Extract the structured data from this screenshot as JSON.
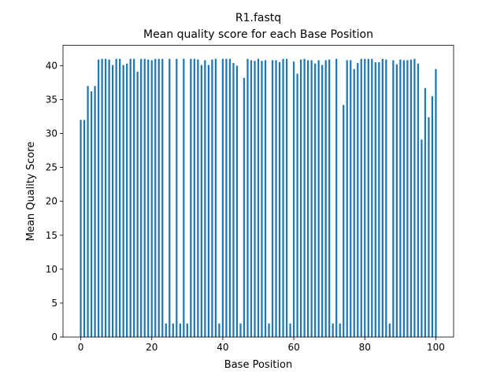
{
  "chart_data": {
    "type": "bar",
    "title": "R1.fastq",
    "subtitle": "Mean quality score for each Base Position",
    "xlabel": "Base Position",
    "ylabel": "Mean Quality Score",
    "xlim": [
      -5,
      105
    ],
    "ylim": [
      0,
      43
    ],
    "xticks": [
      0,
      20,
      40,
      60,
      80,
      100
    ],
    "yticks": [
      0,
      5,
      10,
      15,
      20,
      25,
      30,
      35,
      40
    ],
    "bar_color": "#1f77b4",
    "grid": false,
    "x": [
      0,
      1,
      2,
      3,
      4,
      5,
      6,
      7,
      8,
      9,
      10,
      11,
      12,
      13,
      14,
      15,
      16,
      17,
      18,
      19,
      20,
      21,
      22,
      23,
      24,
      25,
      26,
      27,
      28,
      29,
      30,
      31,
      32,
      33,
      34,
      35,
      36,
      37,
      38,
      39,
      40,
      41,
      42,
      43,
      44,
      45,
      46,
      47,
      48,
      49,
      50,
      51,
      52,
      53,
      54,
      55,
      56,
      57,
      58,
      59,
      60,
      61,
      62,
      63,
      64,
      65,
      66,
      67,
      68,
      69,
      70,
      71,
      72,
      73,
      74,
      75,
      76,
      77,
      78,
      79,
      80,
      81,
      82,
      83,
      84,
      85,
      86,
      87,
      88,
      89,
      90,
      91,
      92,
      93,
      94,
      95,
      96,
      97,
      98,
      99,
      100
    ],
    "values": [
      32.0,
      32.0,
      37.0,
      36.2,
      37.0,
      40.9,
      41.0,
      41.0,
      40.9,
      40.1,
      41.0,
      41.0,
      40.1,
      40.3,
      41.0,
      41.0,
      39.1,
      41.0,
      41.0,
      40.9,
      40.8,
      41.0,
      41.0,
      41.0,
      2.0,
      41.0,
      2.0,
      41.0,
      2.0,
      41.0,
      2.0,
      41.0,
      41.0,
      40.9,
      40.1,
      40.8,
      40.1,
      40.9,
      41.0,
      2.0,
      41.0,
      41.0,
      41.0,
      40.4,
      40.0,
      2.0,
      38.2,
      41.0,
      40.8,
      40.7,
      41.0,
      40.7,
      40.8,
      2.0,
      40.8,
      40.8,
      40.5,
      41.0,
      41.0,
      2.0,
      40.6,
      38.8,
      40.9,
      41.0,
      40.8,
      40.8,
      40.3,
      40.8,
      40.1,
      40.8,
      40.9,
      2.0,
      41.0,
      2.0,
      34.2,
      40.8,
      40.8,
      39.5,
      40.4,
      41.0,
      41.0,
      41.0,
      41.0,
      40.5,
      40.5,
      41.0,
      40.9,
      2.0,
      40.8,
      40.2,
      40.9,
      40.8,
      40.8,
      40.9,
      41.0,
      40.3,
      29.1,
      36.7,
      32.4,
      35.5,
      39.5
    ]
  }
}
